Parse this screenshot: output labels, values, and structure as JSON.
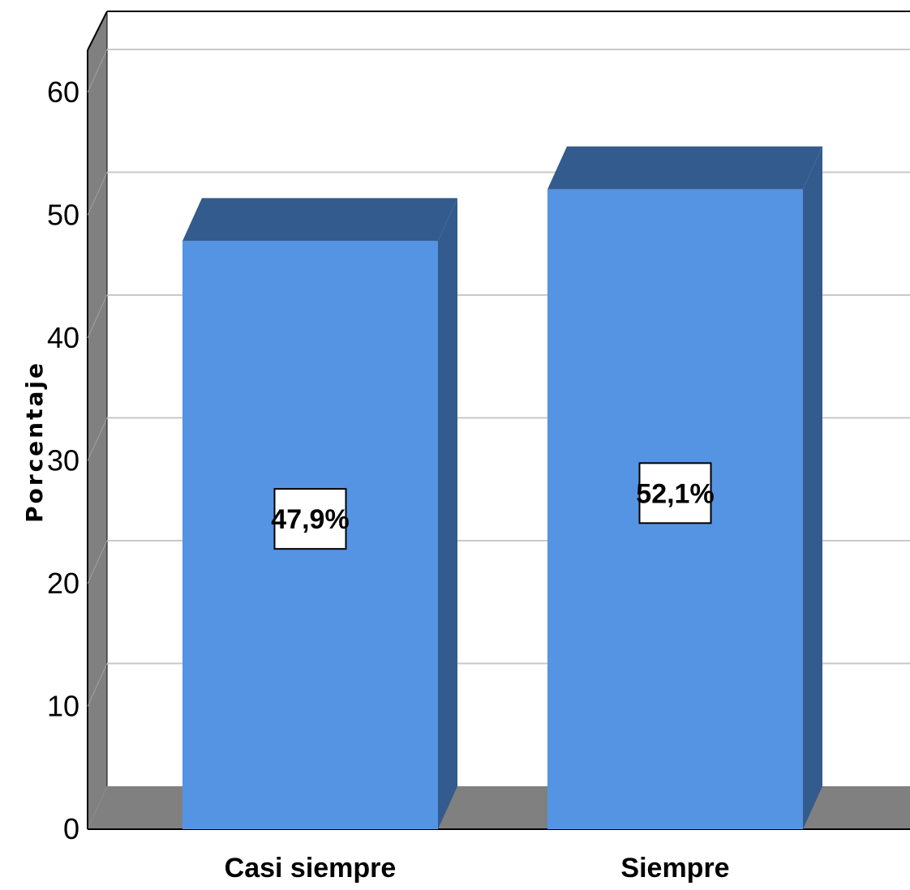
{
  "chart_data": {
    "type": "bar",
    "categories": [
      "Casi siempre",
      "Siempre"
    ],
    "values": [
      47.9,
      52.1
    ],
    "data_labels": [
      "47,9%",
      "52,1%"
    ],
    "title": "",
    "xlabel": "",
    "ylabel": "Porcentaje",
    "ylim": [
      0,
      60
    ],
    "yticks": [
      "0",
      "10",
      "20",
      "30",
      "40",
      "50",
      "60"
    ],
    "grid": true,
    "legend": "none",
    "three_d": true,
    "colors": {
      "bar_front": "#5594e3",
      "bar_side": "#335b8d",
      "wall": "#808080",
      "grid": "#c8c8c8"
    }
  }
}
